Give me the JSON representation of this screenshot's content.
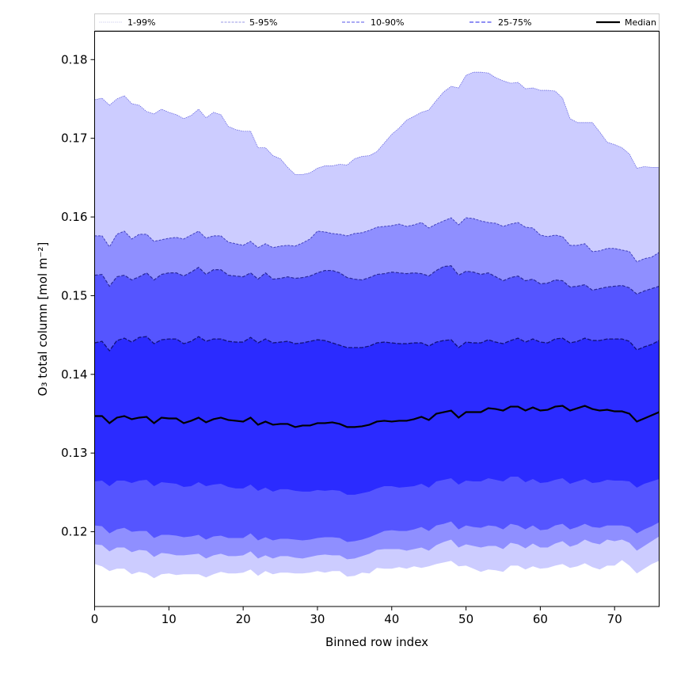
{
  "chart_data": {
    "type": "area",
    "title": "",
    "xlabel": "Binned row index",
    "ylabel": "O₃ total column [mol m⁻²]",
    "xlim": [
      0,
      76
    ],
    "ylim": [
      0.1105,
      0.1836
    ],
    "grid": false,
    "legend_placement": "top",
    "x_ticks": [
      0,
      10,
      20,
      30,
      40,
      50,
      60,
      70
    ],
    "x_tick_labels": [
      "0",
      "10",
      "20",
      "30",
      "40",
      "50",
      "60",
      "70"
    ],
    "y_ticks": [
      0.12,
      0.13,
      0.14,
      0.15,
      0.16,
      0.17,
      0.18
    ],
    "y_tick_labels": [
      "0.12",
      "0.13",
      "0.14",
      "0.15",
      "0.16",
      "0.17",
      "0.18"
    ],
    "colors": {
      "band_1_99": "#ccccff",
      "band_5_95": "#8f8fff",
      "band_10_90": "#5555ff",
      "band_25_75": "#2b2bff",
      "edge_1_99": "#6a6ae0",
      "edge_5_95": "#4444c0",
      "edge_10_90": "#2a2a9a",
      "edge_25_75": "#12127a",
      "median": "#000000"
    },
    "legend": [
      {
        "label": "1-99%",
        "color": "#d4d4f0",
        "style": "dotted"
      },
      {
        "label": "5-95%",
        "color": "#9a9ae6",
        "style": "dashed-thin"
      },
      {
        "label": "10-90%",
        "color": "#7878ee",
        "style": "dashed"
      },
      {
        "label": "25-75%",
        "color": "#6a6af0",
        "style": "dashed-bold"
      },
      {
        "label": "Median",
        "color": "#000000",
        "style": "solid"
      }
    ],
    "x": [
      0,
      1,
      2,
      3,
      4,
      5,
      6,
      7,
      8,
      9,
      10,
      11,
      12,
      13,
      14,
      15,
      16,
      17,
      18,
      19,
      20,
      21,
      22,
      23,
      24,
      25,
      26,
      27,
      28,
      29,
      30,
      31,
      32,
      33,
      34,
      35,
      36,
      37,
      38,
      39,
      40,
      41,
      42,
      43,
      44,
      45,
      46,
      47,
      48,
      49,
      50,
      51,
      52,
      53,
      54,
      55,
      56,
      57,
      58,
      59,
      60,
      61,
      62,
      63,
      64,
      65,
      66,
      67,
      68,
      69,
      70,
      71,
      72,
      73,
      74,
      75,
      76
    ],
    "series": [
      {
        "name": "p99",
        "values": [
          0.1749,
          0.1751,
          0.1742,
          0.175,
          0.1754,
          0.1744,
          0.1742,
          0.1734,
          0.1731,
          0.1737,
          0.1733,
          0.173,
          0.1725,
          0.1729,
          0.1737,
          0.1726,
          0.1733,
          0.173,
          0.1715,
          0.1711,
          0.1709,
          0.1709,
          0.1688,
          0.1688,
          0.1678,
          0.1674,
          0.1663,
          0.1654,
          0.1654,
          0.1656,
          0.1662,
          0.1665,
          0.1665,
          0.1667,
          0.1666,
          0.1674,
          0.1677,
          0.1678,
          0.1683,
          0.1694,
          0.1705,
          0.1713,
          0.1723,
          0.1728,
          0.1733,
          0.1736,
          0.1748,
          0.1759,
          0.1766,
          0.1764,
          0.178,
          0.1784,
          0.1784,
          0.1783,
          0.1777,
          0.1773,
          0.177,
          0.1771,
          0.1763,
          0.1764,
          0.1761,
          0.1761,
          0.176,
          0.1751,
          0.1725,
          0.172,
          0.172,
          0.172,
          0.1708,
          0.1695,
          0.1692,
          0.1688,
          0.168,
          0.1662,
          0.1664,
          0.1663,
          0.1663
        ]
      },
      {
        "name": "p95",
        "values": [
          0.1576,
          0.1576,
          0.1562,
          0.1578,
          0.1582,
          0.1572,
          0.1578,
          0.1578,
          0.1569,
          0.1571,
          0.1573,
          0.1574,
          0.1572,
          0.1577,
          0.1582,
          0.1573,
          0.1576,
          0.1576,
          0.1568,
          0.1566,
          0.1564,
          0.1569,
          0.1561,
          0.1566,
          0.1561,
          0.1563,
          0.1564,
          0.1563,
          0.1567,
          0.1572,
          0.1582,
          0.1581,
          0.1579,
          0.1578,
          0.1576,
          0.1579,
          0.158,
          0.1583,
          0.1587,
          0.1588,
          0.1589,
          0.1591,
          0.1588,
          0.159,
          0.1593,
          0.1586,
          0.1591,
          0.1595,
          0.1599,
          0.159,
          0.1599,
          0.1598,
          0.1595,
          0.1593,
          0.1592,
          0.1588,
          0.1591,
          0.1593,
          0.1587,
          0.1586,
          0.1577,
          0.1575,
          0.1577,
          0.1575,
          0.1564,
          0.1564,
          0.1566,
          0.1556,
          0.1557,
          0.156,
          0.156,
          0.1558,
          0.1556,
          0.1543,
          0.1547,
          0.1549,
          0.1555
        ]
      },
      {
        "name": "p90",
        "values": [
          0.1526,
          0.1527,
          0.1512,
          0.1524,
          0.1526,
          0.152,
          0.1524,
          0.1529,
          0.152,
          0.1527,
          0.1529,
          0.1529,
          0.1525,
          0.153,
          0.1536,
          0.1527,
          0.1533,
          0.1533,
          0.1526,
          0.1525,
          0.1524,
          0.1529,
          0.1521,
          0.1529,
          0.1521,
          0.1522,
          0.1524,
          0.1522,
          0.1523,
          0.1525,
          0.1529,
          0.1532,
          0.1532,
          0.1529,
          0.1523,
          0.1521,
          0.152,
          0.1523,
          0.1527,
          0.1528,
          0.153,
          0.1529,
          0.1528,
          0.1529,
          0.1528,
          0.1525,
          0.1532,
          0.1537,
          0.1538,
          0.1526,
          0.1531,
          0.153,
          0.1527,
          0.1529,
          0.1524,
          0.1519,
          0.1523,
          0.1525,
          0.1519,
          0.1521,
          0.1515,
          0.1516,
          0.152,
          0.1519,
          0.1511,
          0.1512,
          0.1514,
          0.1507,
          0.1509,
          0.1511,
          0.1512,
          0.1513,
          0.151,
          0.1502,
          0.1506,
          0.1509,
          0.1512
        ]
      },
      {
        "name": "p75",
        "values": [
          0.144,
          0.1442,
          0.143,
          0.1443,
          0.1446,
          0.1441,
          0.1447,
          0.1448,
          0.1439,
          0.1444,
          0.1445,
          0.1445,
          0.1439,
          0.1442,
          0.1448,
          0.1442,
          0.1445,
          0.1445,
          0.1442,
          0.1441,
          0.1441,
          0.1447,
          0.144,
          0.1445,
          0.144,
          0.1441,
          0.1442,
          0.1439,
          0.144,
          0.1442,
          0.1444,
          0.1443,
          0.144,
          0.1437,
          0.1434,
          0.1434,
          0.1434,
          0.1436,
          0.144,
          0.1441,
          0.144,
          0.1439,
          0.1439,
          0.144,
          0.144,
          0.1436,
          0.1441,
          0.1443,
          0.1444,
          0.1434,
          0.1441,
          0.144,
          0.144,
          0.1444,
          0.1441,
          0.1439,
          0.1443,
          0.1446,
          0.1441,
          0.1445,
          0.1441,
          0.144,
          0.1445,
          0.1446,
          0.144,
          0.1442,
          0.1446,
          0.1443,
          0.1443,
          0.1445,
          0.1445,
          0.1445,
          0.1442,
          0.1431,
          0.1435,
          0.1438,
          0.1443
        ]
      },
      {
        "name": "median",
        "values": [
          0.1347,
          0.1347,
          0.1338,
          0.1345,
          0.1347,
          0.1343,
          0.1345,
          0.1346,
          0.1338,
          0.1345,
          0.1344,
          0.1344,
          0.1338,
          0.1341,
          0.1345,
          0.1339,
          0.1343,
          0.1345,
          0.1342,
          0.1341,
          0.134,
          0.1345,
          0.1336,
          0.134,
          0.1336,
          0.1337,
          0.1337,
          0.1333,
          0.1335,
          0.1335,
          0.1338,
          0.1338,
          0.1339,
          0.1337,
          0.1333,
          0.1333,
          0.1334,
          0.1336,
          0.134,
          0.1341,
          0.134,
          0.1341,
          0.1341,
          0.1343,
          0.1346,
          0.1342,
          0.135,
          0.1352,
          0.1354,
          0.1345,
          0.1352,
          0.1352,
          0.1352,
          0.1357,
          0.1356,
          0.1354,
          0.1359,
          0.1359,
          0.1354,
          0.1358,
          0.1354,
          0.1355,
          0.1359,
          0.136,
          0.1354,
          0.1357,
          0.136,
          0.1356,
          0.1354,
          0.1355,
          0.1353,
          0.1353,
          0.135,
          0.134,
          0.1344,
          0.1348,
          0.1352
        ]
      },
      {
        "name": "p25",
        "values": [
          0.1264,
          0.1265,
          0.1258,
          0.1265,
          0.1265,
          0.1262,
          0.1265,
          0.1266,
          0.1258,
          0.1263,
          0.1262,
          0.1261,
          0.1257,
          0.1258,
          0.1263,
          0.1258,
          0.126,
          0.1261,
          0.1257,
          0.1255,
          0.1255,
          0.126,
          0.1252,
          0.1256,
          0.1251,
          0.1254,
          0.1254,
          0.1252,
          0.1251,
          0.1251,
          0.1253,
          0.1252,
          0.1253,
          0.1252,
          0.1247,
          0.1247,
          0.1249,
          0.1251,
          0.1255,
          0.1258,
          0.1258,
          0.1256,
          0.1257,
          0.1258,
          0.1261,
          0.1256,
          0.1264,
          0.1266,
          0.1268,
          0.126,
          0.1265,
          0.1264,
          0.1264,
          0.1268,
          0.1266,
          0.1264,
          0.127,
          0.127,
          0.1263,
          0.1267,
          0.1262,
          0.1263,
          0.1266,
          0.1268,
          0.1261,
          0.1264,
          0.1267,
          0.1262,
          0.1263,
          0.1266,
          0.1265,
          0.1265,
          0.1264,
          0.1256,
          0.1261,
          0.1264,
          0.1267
        ]
      },
      {
        "name": "p10",
        "values": [
          0.1208,
          0.1207,
          0.1198,
          0.1203,
          0.1205,
          0.12,
          0.1201,
          0.1201,
          0.1192,
          0.1196,
          0.1196,
          0.1195,
          0.1193,
          0.1194,
          0.1196,
          0.119,
          0.1194,
          0.1195,
          0.1192,
          0.1192,
          0.1192,
          0.1198,
          0.1189,
          0.1193,
          0.1189,
          0.1191,
          0.1191,
          0.119,
          0.1189,
          0.119,
          0.1192,
          0.1193,
          0.1193,
          0.1192,
          0.1187,
          0.1188,
          0.119,
          0.1193,
          0.1197,
          0.1201,
          0.1202,
          0.1201,
          0.1201,
          0.1203,
          0.1206,
          0.1201,
          0.1208,
          0.121,
          0.1213,
          0.1203,
          0.1208,
          0.1206,
          0.1205,
          0.1208,
          0.1207,
          0.1203,
          0.121,
          0.1208,
          0.1203,
          0.1208,
          0.1202,
          0.1203,
          0.1208,
          0.121,
          0.1203,
          0.1206,
          0.121,
          0.1206,
          0.1205,
          0.1208,
          0.1208,
          0.1208,
          0.1206,
          0.1198,
          0.1203,
          0.1207,
          0.1212
        ]
      },
      {
        "name": "p5",
        "values": [
          0.1184,
          0.1183,
          0.1175,
          0.118,
          0.118,
          0.1174,
          0.1177,
          0.1176,
          0.1168,
          0.1173,
          0.1172,
          0.117,
          0.117,
          0.1171,
          0.1172,
          0.1166,
          0.117,
          0.1172,
          0.1169,
          0.1169,
          0.117,
          0.1175,
          0.1166,
          0.117,
          0.1166,
          0.1169,
          0.1169,
          0.1167,
          0.1166,
          0.1168,
          0.117,
          0.1171,
          0.117,
          0.117,
          0.1165,
          0.1166,
          0.1169,
          0.1172,
          0.1177,
          0.1178,
          0.1178,
          0.1178,
          0.1176,
          0.1178,
          0.118,
          0.1176,
          0.1183,
          0.1187,
          0.119,
          0.118,
          0.1184,
          0.1182,
          0.118,
          0.1182,
          0.1182,
          0.1178,
          0.1186,
          0.1184,
          0.1179,
          0.1185,
          0.118,
          0.118,
          0.1185,
          0.1188,
          0.1181,
          0.1184,
          0.119,
          0.1186,
          0.1184,
          0.119,
          0.1188,
          0.119,
          0.1186,
          0.1176,
          0.1182,
          0.1188,
          0.1194
        ]
      },
      {
        "name": "p1",
        "values": [
          0.1159,
          0.1156,
          0.115,
          0.1153,
          0.1153,
          0.1146,
          0.1149,
          0.1147,
          0.1141,
          0.1146,
          0.1147,
          0.1145,
          0.1146,
          0.1146,
          0.1146,
          0.1142,
          0.1146,
          0.1149,
          0.1147,
          0.1147,
          0.1148,
          0.1152,
          0.1144,
          0.115,
          0.1146,
          0.1148,
          0.1148,
          0.1147,
          0.1147,
          0.1148,
          0.115,
          0.1148,
          0.115,
          0.115,
          0.1143,
          0.1144,
          0.1148,
          0.1147,
          0.1154,
          0.1153,
          0.1153,
          0.1155,
          0.1153,
          0.1156,
          0.1154,
          0.1156,
          0.1159,
          0.1161,
          0.1163,
          0.1156,
          0.1157,
          0.1153,
          0.1149,
          0.1152,
          0.1151,
          0.1149,
          0.1157,
          0.1157,
          0.1152,
          0.1156,
          0.1153,
          0.1154,
          0.1157,
          0.1159,
          0.1154,
          0.1156,
          0.116,
          0.1155,
          0.1152,
          0.1157,
          0.1157,
          0.1164,
          0.1157,
          0.1147,
          0.1153,
          0.1159,
          0.1163
        ]
      }
    ]
  }
}
